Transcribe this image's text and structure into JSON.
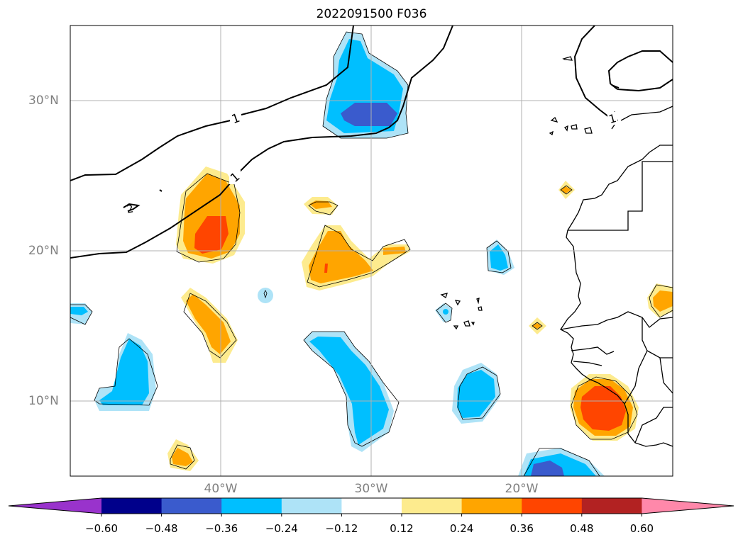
{
  "title": "2022091500 F036",
  "grid": {
    "lat_labels": [
      "30°N",
      "20°N",
      "10°N"
    ],
    "lon_labels": [
      "40°W",
      "30°W",
      "20°W"
    ]
  },
  "contour_labels": [
    "1",
    "1",
    "2",
    "1"
  ],
  "colorbar": {
    "colors": [
      "#9933cc",
      "#00008b",
      "#3a5bcd",
      "#00bfff",
      "#aee3f7",
      "#ffffff",
      "#fdeb8e",
      "#ffa500",
      "#ff4500",
      "#b22222",
      "#ff88aa"
    ],
    "ticks": [
      "−0.60",
      "−0.48",
      "−0.36",
      "−0.24",
      "−0.12",
      "0.12",
      "0.24",
      "0.36",
      "0.48",
      "0.60"
    ]
  }
}
